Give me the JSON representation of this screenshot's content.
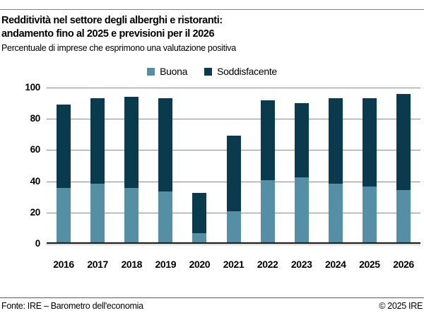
{
  "header": {
    "title_line1": "Redditività nel settore degli alberghi e ristoranti:",
    "title_line2": "andamento fino al 2025 e previsioni per il 2026",
    "subtitle": "Percentuale di imprese che esprimono una valutazione positiva"
  },
  "legend": {
    "items": [
      {
        "label": "Buona",
        "color": "#548fa6"
      },
      {
        "label": "Soddisfacente",
        "color": "#093a4e"
      }
    ]
  },
  "chart_data": {
    "type": "bar",
    "stacked": true,
    "title": "Redditività nel settore degli alberghi e ristoranti: andamento fino al 2025 e previsioni per il 2026",
    "subtitle": "Percentuale di imprese che esprimono una valutazione positiva",
    "categories": [
      "2016",
      "2017",
      "2018",
      "2019",
      "2020",
      "2021",
      "2022",
      "2023",
      "2024",
      "2025",
      "2026"
    ],
    "series": [
      {
        "name": "Buona",
        "color": "#548fa6",
        "values": [
          35,
          38,
          35,
          33,
          6,
          20,
          40,
          42,
          38,
          36,
          34
        ]
      },
      {
        "name": "Soddisfacente",
        "color": "#093a4e",
        "values": [
          54,
          55,
          59,
          60,
          26,
          49,
          52,
          48,
          55,
          57,
          62
        ]
      }
    ],
    "stack_totals": [
      89,
      93,
      94,
      93,
      32,
      69,
      92,
      90,
      93,
      93,
      96
    ],
    "xlabel": "",
    "ylabel": "",
    "ylim": [
      0,
      100
    ],
    "yticks": [
      0,
      20,
      40,
      60,
      80,
      100
    ],
    "grid": true,
    "legend_position": "top"
  },
  "footer": {
    "source": "Fonte: IRE – Barometro dell'economia",
    "copyright": "© 2025 IRE"
  },
  "colors": {
    "buona": "#548fa6",
    "soddisfacente": "#093a4e",
    "gridline": "#8a8a8a",
    "axis": "#141414",
    "top_rule": "#7f7f7f",
    "footer_rule": "#5a5a5a"
  }
}
